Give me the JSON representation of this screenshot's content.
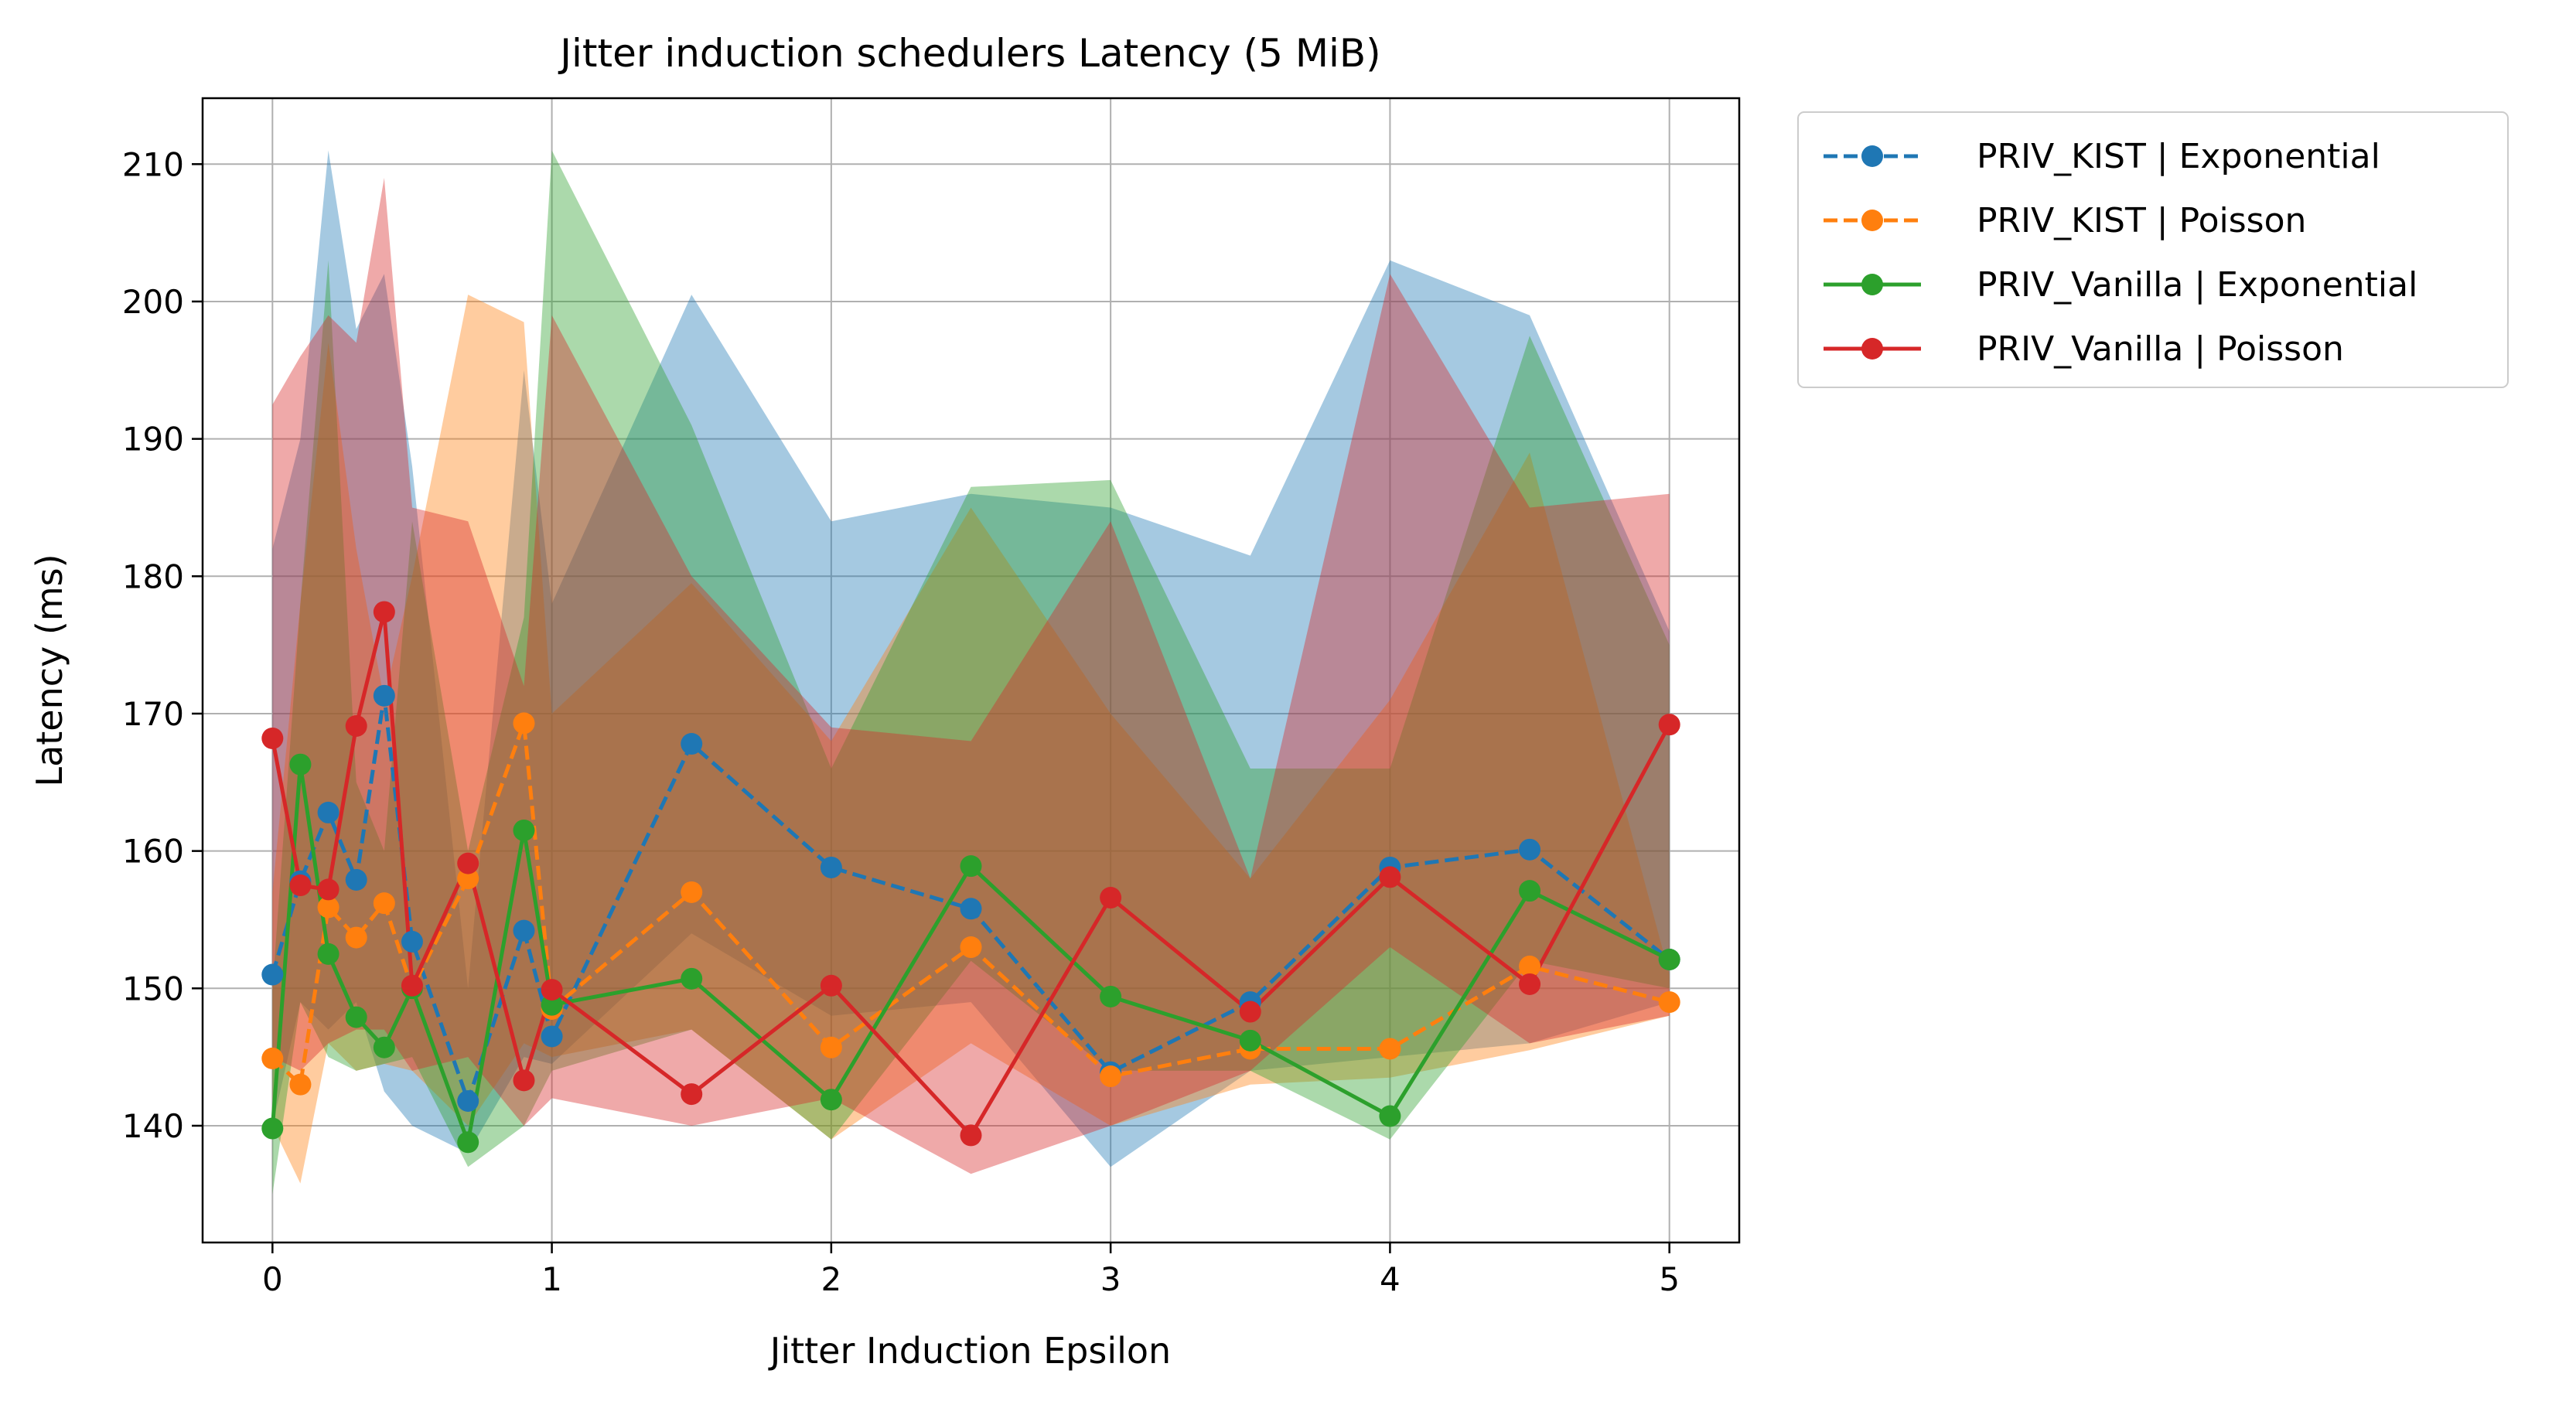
{
  "chart_data": {
    "type": "line",
    "title": "Jitter induction schedulers Latency (5 MiB)",
    "xlabel": "Jitter Induction Epsilon",
    "ylabel": "Latency (ms)",
    "xlim": [
      -0.25,
      5.25
    ],
    "ylim": [
      131.5,
      214.8
    ],
    "xticks": [
      0,
      1,
      2,
      3,
      4,
      5
    ],
    "xtick_labels": [
      "0",
      "1",
      "2",
      "3",
      "4",
      "5"
    ],
    "yticks": [
      140,
      150,
      160,
      170,
      180,
      190,
      200,
      210
    ],
    "ytick_labels": [
      "140",
      "150",
      "160",
      "170",
      "180",
      "190",
      "200",
      "210"
    ],
    "grid": true,
    "legend_position": "outside-top-right",
    "x": [
      0,
      0.1,
      0.2,
      0.3,
      0.4,
      0.5,
      0.7,
      0.9,
      1,
      1.5,
      2,
      2.5,
      3,
      3.5,
      4,
      4.5,
      5
    ],
    "series": [
      {
        "name": "PRIV_KIST | Exponential",
        "color": "#1f77b4",
        "linestyle": "dashed",
        "values": [
          151.0,
          157.8,
          162.8,
          157.9,
          171.3,
          153.4,
          141.8,
          154.2,
          146.5,
          167.8,
          158.8,
          155.8,
          143.9,
          149.0,
          158.8,
          160.1,
          152.1
        ],
        "lower": [
          140.0,
          149.0,
          147.0,
          149.0,
          142.5,
          140.0,
          138.0,
          145.0,
          144.5,
          154.0,
          148.0,
          149.0,
          137.0,
          144.0,
          145.0,
          146.0,
          149.0
        ],
        "upper": [
          182.0,
          190.0,
          211.0,
          198.0,
          202.0,
          188.0,
          150.0,
          195.0,
          178.0,
          200.5,
          184.0,
          186.0,
          185.0,
          181.5,
          203.0,
          199.0,
          176.0
        ]
      },
      {
        "name": "PRIV_KIST | Poisson",
        "color": "#ff7f0e",
        "linestyle": "dashed",
        "values": [
          144.9,
          143.0,
          155.9,
          153.7,
          156.2,
          150.0,
          158.0,
          169.3,
          148.5,
          157.0,
          145.7,
          153.0,
          143.6,
          145.6,
          145.6,
          151.6,
          149.0
        ],
        "lower": [
          140.0,
          135.8,
          146.0,
          144.0,
          144.5,
          144.0,
          140.0,
          146.0,
          145.0,
          147.0,
          139.0,
          146.0,
          140.0,
          143.0,
          143.5,
          145.5,
          148.0
        ],
        "upper": [
          157.0,
          178.0,
          197.0,
          182.0,
          171.0,
          180.0,
          200.5,
          198.5,
          170.0,
          179.5,
          168.0,
          185.0,
          170.0,
          158.0,
          171.0,
          189.0,
          151.0
        ]
      },
      {
        "name": "PRIV_Vanilla | Exponential",
        "color": "#2ca02c",
        "linestyle": "solid",
        "values": [
          139.8,
          166.3,
          152.5,
          147.9,
          145.7,
          150.0,
          138.8,
          161.5,
          148.8,
          150.7,
          141.9,
          158.9,
          149.4,
          146.2,
          140.7,
          157.1,
          152.1
        ],
        "lower": [
          135.0,
          149.0,
          145.0,
          144.0,
          144.5,
          145.0,
          137.0,
          140.0,
          144.0,
          147.0,
          139.0,
          152.0,
          144.0,
          144.0,
          139.0,
          152.0,
          150.0
        ],
        "upper": [
          150.0,
          178.0,
          203.0,
          165.0,
          160.0,
          184.0,
          160.0,
          177.0,
          211.0,
          191.0,
          166.0,
          186.5,
          187.0,
          166.0,
          166.0,
          197.5,
          175.0
        ]
      },
      {
        "name": "PRIV_Vanilla | Poisson",
        "color": "#d62728",
        "linestyle": "solid",
        "values": [
          168.2,
          157.5,
          157.2,
          169.1,
          177.4,
          150.2,
          159.1,
          143.3,
          149.9,
          142.3,
          150.2,
          139.3,
          156.6,
          148.3,
          158.1,
          150.3,
          169.2
        ],
        "lower": [
          145.0,
          144.0,
          146.0,
          147.0,
          147.0,
          144.0,
          145.0,
          140.0,
          142.0,
          140.0,
          142.0,
          136.5,
          140.0,
          144.0,
          153.0,
          146.0,
          148.0
        ],
        "upper": [
          192.5,
          196.0,
          199.0,
          197.0,
          209.0,
          185.0,
          184.0,
          172.0,
          199.0,
          180.0,
          169.0,
          168.0,
          184.0,
          158.0,
          202.0,
          185.0,
          186.0
        ]
      }
    ]
  }
}
